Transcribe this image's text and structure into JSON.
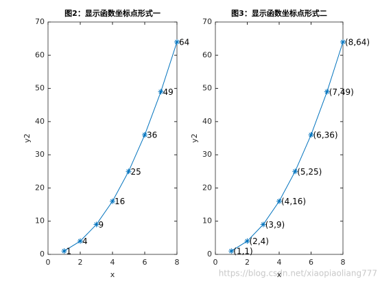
{
  "chart_data": [
    {
      "type": "line",
      "title": "图2：显示函数坐标点形式一",
      "xlabel": "x",
      "ylabel": "y2",
      "x": [
        1,
        2,
        3,
        4,
        5,
        6,
        7,
        8
      ],
      "values": [
        1,
        4,
        9,
        16,
        25,
        36,
        49,
        64
      ],
      "color": "#0072bd",
      "xlim": [
        0,
        8
      ],
      "xticks": [
        0,
        2,
        4,
        6,
        8
      ],
      "ylim": [
        0,
        70
      ],
      "yticks": [
        0,
        10,
        20,
        30,
        40,
        50,
        60,
        70
      ]
    },
    {
      "type": "line",
      "title": "图3：显示函数坐标点形式二",
      "xlabel": "x",
      "ylabel": "y2",
      "x": [
        1,
        2,
        3,
        4,
        5,
        6,
        7,
        8
      ],
      "values": [
        1,
        4,
        9,
        16,
        25,
        36,
        49,
        64
      ],
      "value_labels": [
        "(1,1)",
        "(2,4)",
        "(3,9)",
        "(4,16)",
        "(5,25)",
        "(6,36)",
        "(7,49)",
        "(8,64)"
      ],
      "color": "#0072bd",
      "xlim": [
        0,
        8
      ],
      "xticks": [
        0,
        2,
        4,
        6,
        8
      ],
      "ylim": [
        0,
        70
      ],
      "yticks": [
        0,
        10,
        20,
        30,
        40,
        50,
        60,
        70
      ]
    }
  ],
  "watermark": "https://blog.csdn.net/xiaopiaoliang777"
}
